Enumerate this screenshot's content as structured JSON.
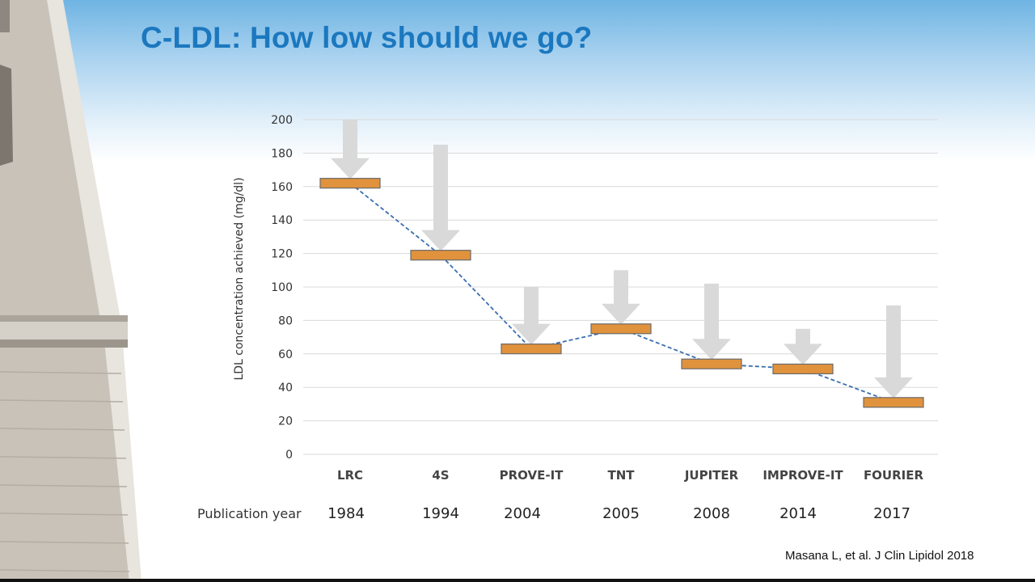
{
  "slide": {
    "title": "C-LDL: How low should we go?",
    "citation": "Masana L, et al. J Clin Lipidol 2018"
  },
  "chart_data": {
    "type": "bar",
    "title": "",
    "ylabel": "LDL concentration achieved  (mg/dl)",
    "xlabel": "",
    "ylim": [
      0,
      200
    ],
    "yticks": [
      0,
      20,
      40,
      60,
      80,
      100,
      120,
      140,
      160,
      180,
      200
    ],
    "grid": true,
    "row_label": "Publication year",
    "categories": [
      "LRC",
      "4S",
      "PROVE-IT",
      "TNT",
      "JUPITER",
      "IMPROVE-IT",
      "FOURIER"
    ],
    "years": [
      "1984",
      "1994",
      "2004",
      "2005",
      "2008",
      "2014",
      "2017"
    ],
    "values": [
      162,
      119,
      63,
      75,
      54,
      51,
      31
    ],
    "baseline": [
      200,
      185,
      100,
      110,
      102,
      75,
      89
    ],
    "colors": {
      "bar": "#e0923c",
      "arrow": "#d9d9d9",
      "line": "#3a6fb0",
      "grid": "#d9d9d9",
      "title": "#1b78bf"
    }
  }
}
